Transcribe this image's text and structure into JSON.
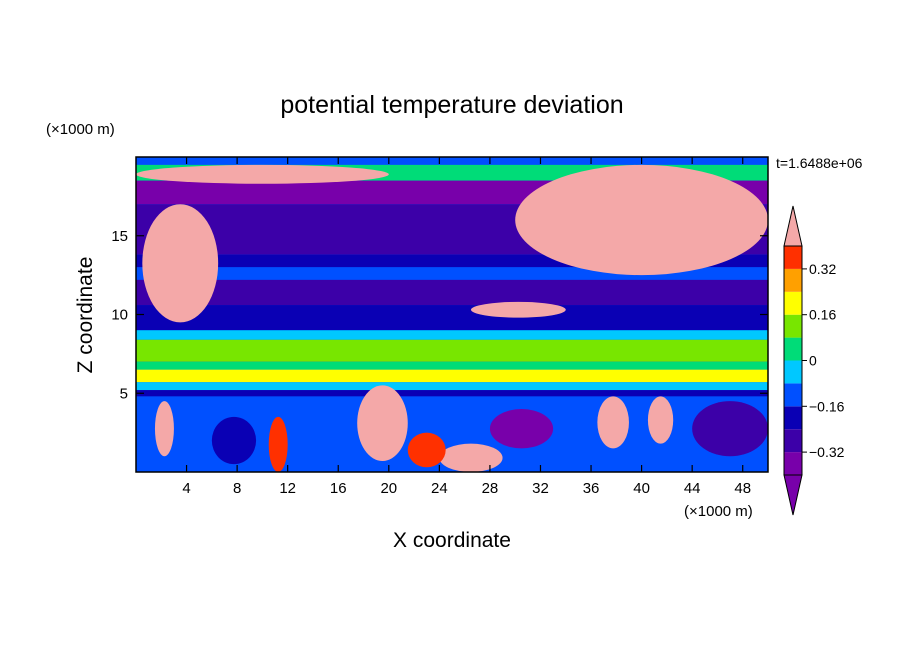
{
  "chart_data": {
    "type": "heatmap",
    "title": "potential temperature deviation",
    "xlabel": "X coordinate",
    "ylabel": "Z coordinate",
    "x_unit": "(×1000 m)",
    "y_unit": "(×1000 m)",
    "time_label": "t=1.6488e+06",
    "xlim": [
      0,
      50
    ],
    "ylim": [
      0,
      20
    ],
    "xticks": [
      4,
      8,
      12,
      16,
      20,
      24,
      28,
      32,
      36,
      40,
      44,
      48
    ],
    "yticks": [
      5,
      10,
      15
    ],
    "colorbar": {
      "levels": [
        -0.4,
        -0.32,
        -0.24,
        -0.16,
        -0.08,
        0,
        0.08,
        0.16,
        0.24,
        0.32,
        0.4
      ],
      "labeled_ticks": [
        0.32,
        0.16,
        0,
        -0.16,
        -0.32
      ],
      "tick_labels": [
        "0.32",
        "0.16",
        "0",
        "−0.16",
        "−0.32"
      ],
      "colors": [
        "#7800aa",
        "#3c00a8",
        "#0a00b4",
        "#0050ff",
        "#00c8ff",
        "#00dc78",
        "#78e600",
        "#ffff00",
        "#ffa000",
        "#ff3000",
        "#f4a8a8"
      ],
      "extend": "both"
    },
    "layers": [
      {
        "z": [
          18.5,
          19.5
        ],
        "level": 5
      },
      {
        "z": [
          17.0,
          18.5
        ],
        "level": 0
      },
      {
        "z": [
          13.8,
          17.0
        ],
        "level": 1
      },
      {
        "z": [
          13.0,
          13.8
        ],
        "level": 2
      },
      {
        "z": [
          12.2,
          13.0
        ],
        "level": 3
      },
      {
        "z": [
          10.6,
          12.2
        ],
        "level": 1
      },
      {
        "z": [
          9.0,
          10.6
        ],
        "level": 2
      },
      {
        "z": [
          8.4,
          9.0
        ],
        "level": 4
      },
      {
        "z": [
          7.0,
          8.4
        ],
        "level": 6
      },
      {
        "z": [
          6.5,
          7.0
        ],
        "level": 5
      },
      {
        "z": [
          5.7,
          6.5
        ],
        "level": 7
      },
      {
        "z": [
          5.2,
          5.7
        ],
        "level": 4
      },
      {
        "z": [
          4.8,
          5.2
        ],
        "level": 2
      },
      {
        "z": [
          0,
          4.8
        ],
        "level": 3
      }
    ],
    "anomalies": [
      {
        "x": [
          0.5,
          6.5
        ],
        "z": [
          9.5,
          17.0
        ],
        "level": 10
      },
      {
        "x": [
          30.0,
          50.0
        ],
        "z": [
          12.5,
          19.5
        ],
        "level": 10
      },
      {
        "x": [
          0.0,
          20.0
        ],
        "z": [
          18.3,
          19.5
        ],
        "level": 10
      },
      {
        "x": [
          26.5,
          34.0
        ],
        "z": [
          9.8,
          10.8
        ],
        "level": 10
      },
      {
        "x": [
          17.5,
          21.5
        ],
        "z": [
          0.7,
          5.5
        ],
        "level": 10
      },
      {
        "x": [
          36.5,
          39.0
        ],
        "z": [
          1.5,
          4.8
        ],
        "level": 10
      },
      {
        "x": [
          40.5,
          42.5
        ],
        "z": [
          1.8,
          4.8
        ],
        "level": 10
      },
      {
        "x": [
          24.0,
          29.0
        ],
        "z": [
          0.0,
          1.8
        ],
        "level": 10
      },
      {
        "x": [
          1.5,
          3.0
        ],
        "z": [
          1.0,
          4.5
        ],
        "level": 10
      },
      {
        "x": [
          10.5,
          12.0
        ],
        "z": [
          0.0,
          3.5
        ],
        "level": 9
      },
      {
        "x": [
          21.5,
          24.5
        ],
        "z": [
          0.3,
          2.5
        ],
        "level": 9
      },
      {
        "x": [
          6.0,
          9.5
        ],
        "z": [
          0.5,
          3.5
        ],
        "level": 2
      },
      {
        "x": [
          28.0,
          33.0
        ],
        "z": [
          1.5,
          4.0
        ],
        "level": 0
      },
      {
        "x": [
          44.0,
          50.0
        ],
        "z": [
          1.0,
          4.5
        ],
        "level": 1
      }
    ]
  }
}
